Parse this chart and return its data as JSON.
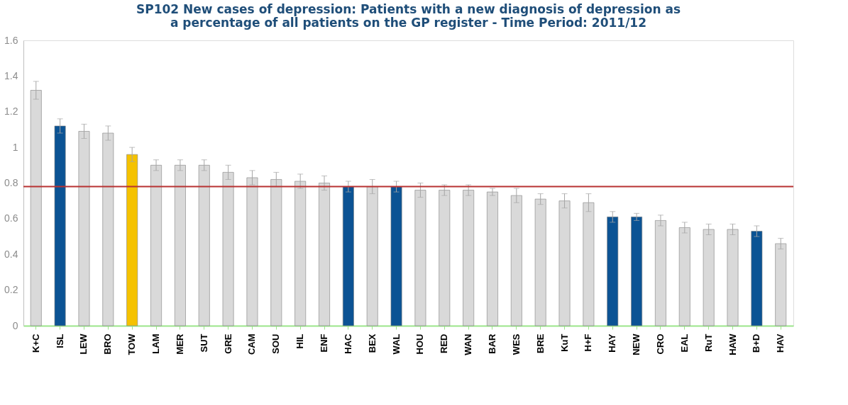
{
  "chart_data": {
    "type": "bar",
    "title": "SP102 New cases of depression: Patients with a new diagnosis of depression as\na percentage of all patients on the GP register - Time Period: 2011/12",
    "categories": [
      "K+C",
      "ISL",
      "LEW",
      "BRO",
      "TOW",
      "LAM",
      "MER",
      "SUT",
      "GRE",
      "CAM",
      "SOU",
      "HIL",
      "ENF",
      "HAC",
      "BEX",
      "WAL",
      "HOU",
      "RED",
      "WAN",
      "BAR",
      "WES",
      "BRE",
      "KuT",
      "H+F",
      "HAY",
      "NEW",
      "CRO",
      "EAL",
      "RuT",
      "HAW",
      "B+D",
      "HAV"
    ],
    "values": [
      1.32,
      1.12,
      1.09,
      1.08,
      0.96,
      0.9,
      0.9,
      0.9,
      0.86,
      0.83,
      0.82,
      0.81,
      0.8,
      0.78,
      0.78,
      0.78,
      0.76,
      0.76,
      0.76,
      0.75,
      0.73,
      0.71,
      0.7,
      0.69,
      0.61,
      0.61,
      0.59,
      0.55,
      0.54,
      0.54,
      0.53,
      0.46
    ],
    "errors": [
      0.05,
      0.04,
      0.04,
      0.04,
      0.04,
      0.03,
      0.03,
      0.03,
      0.04,
      0.04,
      0.04,
      0.04,
      0.04,
      0.03,
      0.04,
      0.03,
      0.04,
      0.03,
      0.03,
      0.02,
      0.04,
      0.03,
      0.04,
      0.05,
      0.03,
      0.02,
      0.03,
      0.03,
      0.03,
      0.03,
      0.03,
      0.03
    ],
    "colors": [
      "#d9d9d9",
      "#0b5394",
      "#d9d9d9",
      "#d9d9d9",
      "#f5c200",
      "#d9d9d9",
      "#d9d9d9",
      "#d9d9d9",
      "#d9d9d9",
      "#d9d9d9",
      "#d9d9d9",
      "#d9d9d9",
      "#d9d9d9",
      "#0b5394",
      "#d9d9d9",
      "#0b5394",
      "#d9d9d9",
      "#d9d9d9",
      "#d9d9d9",
      "#d9d9d9",
      "#d9d9d9",
      "#d9d9d9",
      "#d9d9d9",
      "#d9d9d9",
      "#0b5394",
      "#0b5394",
      "#d9d9d9",
      "#d9d9d9",
      "#d9d9d9",
      "#d9d9d9",
      "#0b5394",
      "#d9d9d9"
    ],
    "ylim": [
      0,
      1.6
    ],
    "yticks": [
      0,
      0.2,
      0.4,
      0.6,
      0.8,
      1,
      1.2,
      1.4,
      1.6
    ],
    "ref_lines": [
      {
        "axis": "y",
        "value": 0.78,
        "color": "#b83232"
      }
    ],
    "grid": false
  }
}
